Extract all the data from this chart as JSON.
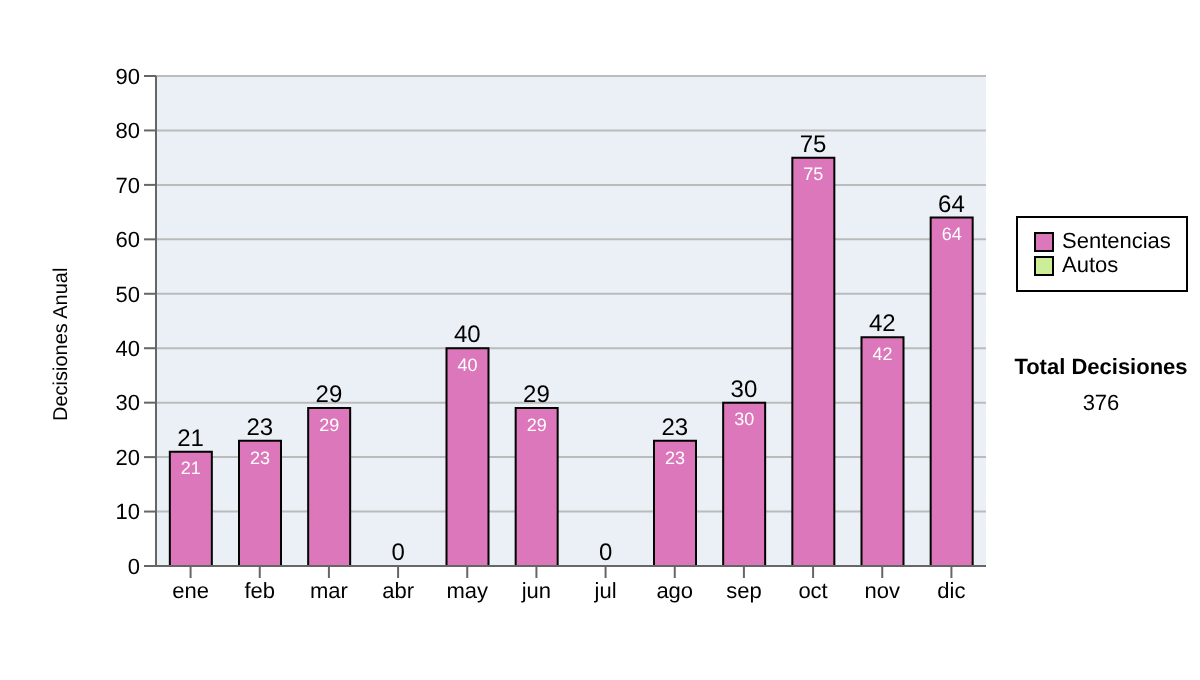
{
  "chart_data": {
    "type": "bar",
    "stacked": true,
    "ylabel": "Decisiones Anual",
    "categories": [
      "ene",
      "feb",
      "mar",
      "abr",
      "may",
      "jun",
      "jul",
      "ago",
      "sep",
      "oct",
      "nov",
      "dic"
    ],
    "series": [
      {
        "name": "Sentencias",
        "color": "#dd77bb",
        "values": [
          21,
          23,
          29,
          0,
          40,
          29,
          0,
          23,
          30,
          75,
          42,
          64
        ],
        "value_labels": [
          "21",
          "23",
          "29",
          null,
          "40",
          "29",
          null,
          "23",
          "30",
          "75",
          "42",
          "64"
        ]
      },
      {
        "name": "Autos",
        "color": "#ccee99",
        "values": [
          0,
          0,
          0,
          0,
          0,
          0,
          0,
          0,
          0,
          0,
          0,
          0
        ]
      }
    ],
    "totals": [
      "21",
      "23",
      "29",
      "0",
      "40",
      "29",
      "0",
      "23",
      "30",
      "75",
      "42",
      "64"
    ],
    "ylim": [
      0,
      90
    ],
    "yticks": [
      0,
      10,
      20,
      30,
      40,
      50,
      60,
      70,
      80,
      90
    ],
    "grid": "y",
    "legend": "right",
    "annotations": [
      "Total Decisiones",
      "376"
    ]
  }
}
